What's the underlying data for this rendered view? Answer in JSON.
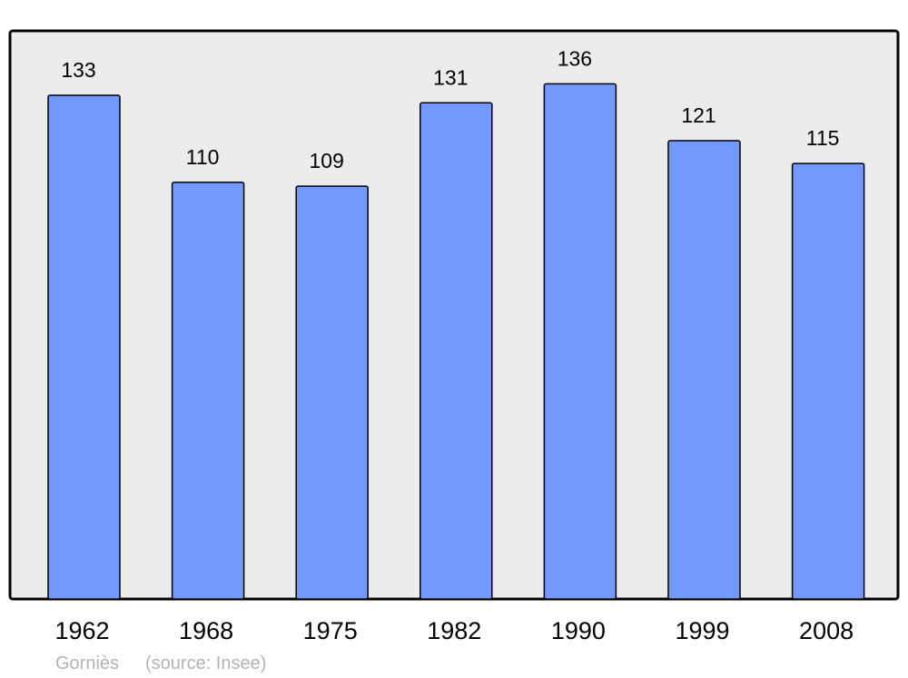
{
  "chart_data": {
    "type": "bar",
    "categories": [
      "1962",
      "1968",
      "1975",
      "1982",
      "1990",
      "1999",
      "2008"
    ],
    "values": [
      133,
      110,
      109,
      131,
      136,
      121,
      115
    ],
    "title": "",
    "xlabel": "",
    "ylabel": "",
    "ylim": [
      0,
      150
    ],
    "grid": false,
    "data_labels": true,
    "colors": {
      "bar": "#7399ff",
      "plot_background": "#ececec",
      "frame": "#000000",
      "footer_text": "#b3b3b3"
    }
  },
  "footer": {
    "place": "Gorniès",
    "source": "(source: Insee)"
  }
}
